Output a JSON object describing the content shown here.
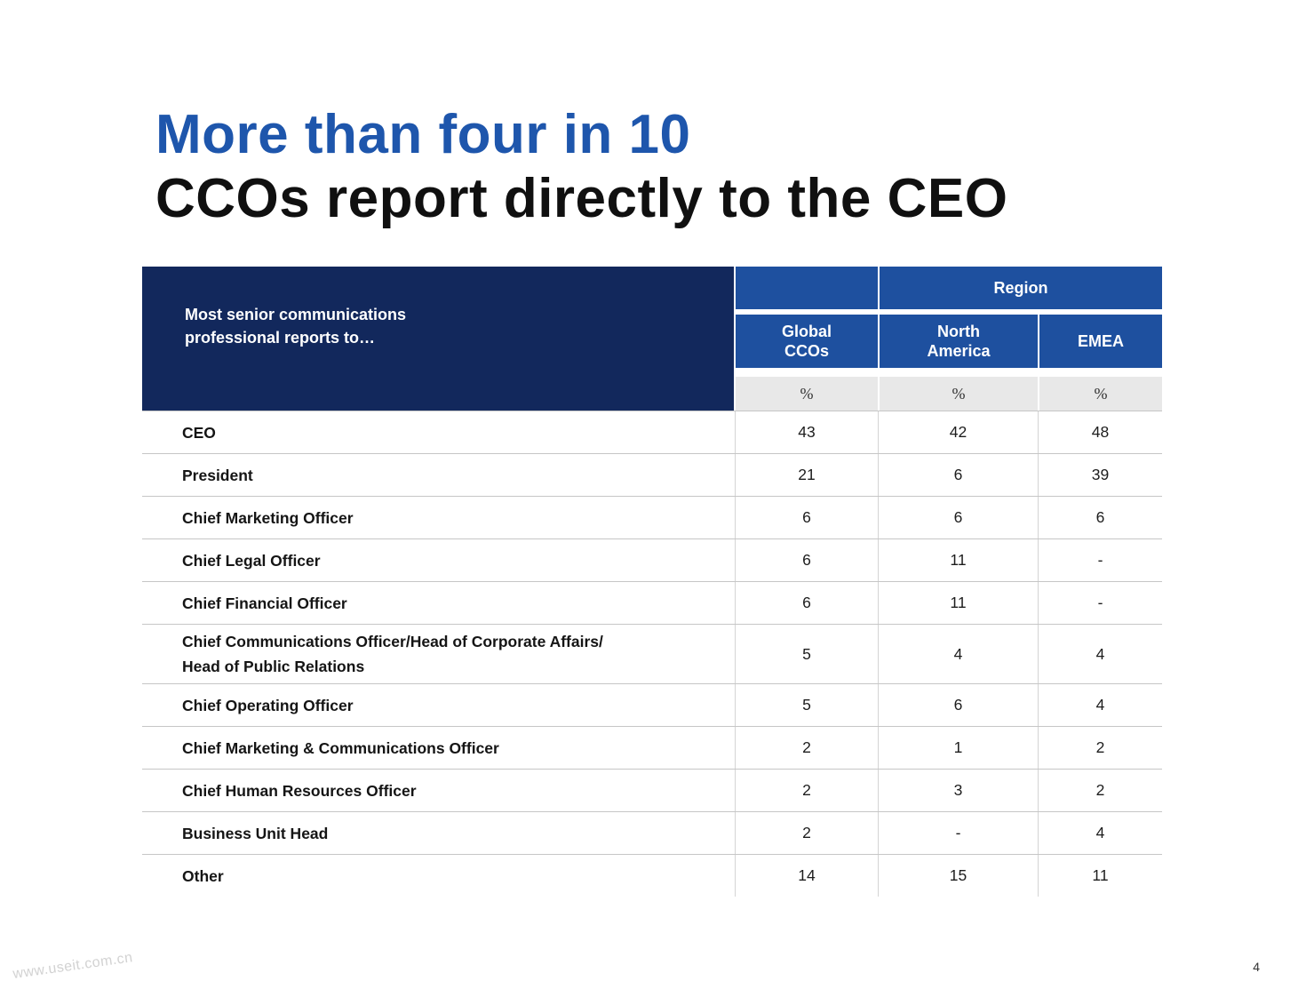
{
  "page": {
    "title_line1": "More than four in 10",
    "title_line2": "CCOs report directly to the CEO",
    "watermark": "www.useit.com.cn",
    "page_number": "4"
  },
  "table": {
    "row_header": "Most senior communications\nprofessional reports to…",
    "region_header": "Region",
    "columns": {
      "global": "Global\nCCOs",
      "north_america": "North\nAmerica",
      "emea": "EMEA"
    },
    "percent_symbol": "%",
    "rows": [
      {
        "label": "CEO",
        "values": [
          "43",
          "42",
          "48"
        ]
      },
      {
        "label": "President",
        "values": [
          "21",
          "6",
          "39"
        ]
      },
      {
        "label": "Chief Marketing Officer",
        "values": [
          "6",
          "6",
          "6"
        ]
      },
      {
        "label": "Chief Legal Officer",
        "values": [
          "6",
          "11",
          "-"
        ]
      },
      {
        "label": "Chief Financial Officer",
        "values": [
          "6",
          "11",
          "-"
        ]
      },
      {
        "label": "Chief Communications Officer/Head of Corporate Affairs/\nHead of Public Relations",
        "values": [
          "5",
          "4",
          "4"
        ]
      },
      {
        "label": "Chief Operating Officer",
        "values": [
          "5",
          "6",
          "4"
        ]
      },
      {
        "label": "Chief Marketing & Communications Officer",
        "values": [
          "2",
          "1",
          "2"
        ]
      },
      {
        "label": "Chief Human Resources Officer",
        "values": [
          "2",
          "3",
          "2"
        ]
      },
      {
        "label": "Business Unit Head",
        "values": [
          "2",
          "-",
          "4"
        ]
      },
      {
        "label": "Other",
        "values": [
          "14",
          "15",
          "11"
        ]
      }
    ]
  },
  "colors": {
    "title_blue": "#1E56AC",
    "header_navy": "#12285C",
    "header_blue": "#1E509F",
    "percent_bg": "#E8E8E8"
  }
}
